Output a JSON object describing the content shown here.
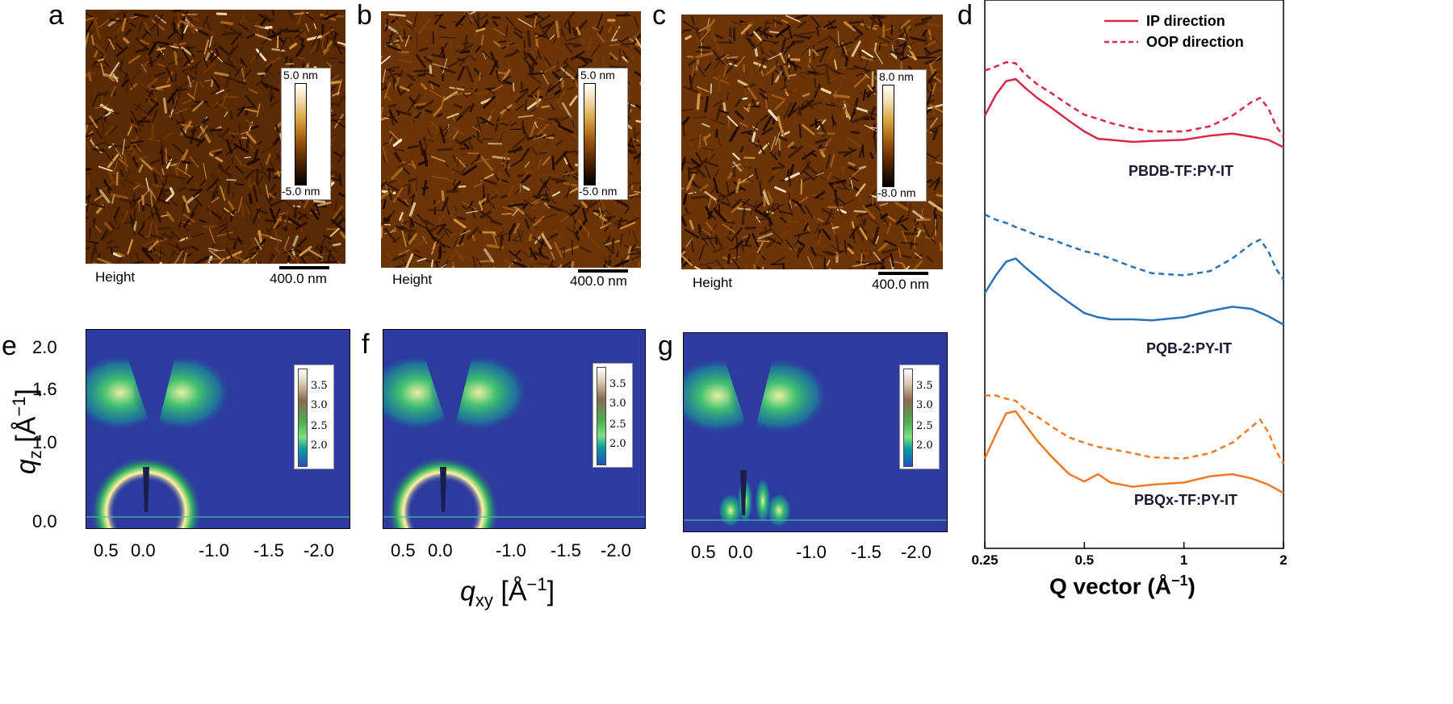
{
  "panels": {
    "a": "a",
    "b": "b",
    "c": "c",
    "d": "d",
    "e": "e",
    "f": "f",
    "g": "g"
  },
  "afm": [
    {
      "id": "a",
      "cbar_top": "5.0 nm",
      "cbar_bottom": "-5.0 nm",
      "channel": "Height",
      "scale": "400.0 nm"
    },
    {
      "id": "b",
      "cbar_top": "5.0 nm",
      "cbar_bottom": "-5.0 nm",
      "channel": "Height",
      "scale": "400.0 nm"
    },
    {
      "id": "c",
      "cbar_top": "8.0 nm",
      "cbar_bottom": "-8.0 nm",
      "channel": "Height",
      "scale": "400.0 nm"
    }
  ],
  "giwaxs": {
    "colorbar_ticks": [
      "3.5",
      "3.0",
      "2.5",
      "2.0"
    ],
    "x_ticks": [
      "0.5",
      "0.0",
      "-1.0",
      "-1.5",
      "-2.0"
    ],
    "y_ticks": [
      "2.0",
      "1.6",
      "1.0",
      "0.0"
    ],
    "xlabel": "q",
    "xlabel_sub": "xy",
    "xlabel_unit": "[Å",
    "xlabel_exp": "−1",
    "xlabel_close": "]",
    "ylabel": "q",
    "ylabel_sub": "z",
    "ylabel_unit": "[Å",
    "ylabel_exp": "−1",
    "ylabel_close": "]"
  },
  "colors": {
    "afm_dark": "#2a1200",
    "afm_mid": "#8a4a0a",
    "afm_light": "#f0d8a0",
    "giwaxs_bg": "#2d3a9e",
    "pbdb": "#d8284a",
    "pqb": "#2a72b8",
    "pbqx": "#f07a24"
  },
  "chart_data": {
    "type": "line",
    "xlabel": "Q vector (Å",
    "xlabel_exp": "−1",
    "xlabel_close": ")",
    "x_scale": "log",
    "xlim": [
      0.25,
      2
    ],
    "x_ticks": [
      "0.25",
      "0.5",
      "1",
      "2"
    ],
    "legend": [
      {
        "label": "IP direction",
        "style": "solid"
      },
      {
        "label": "OOP direction",
        "style": "dashed"
      }
    ],
    "legend_position": "top-right",
    "samples": [
      "PBDB-TF:PY-IT",
      "PQB-2:PY-IT",
      "PBQx-TF:PY-IT"
    ],
    "series": [
      {
        "sample": "PBDB-TF:PY-IT",
        "direction": "IP",
        "color": "#d8284a",
        "x": [
          0.25,
          0.27,
          0.29,
          0.31,
          0.33,
          0.36,
          0.4,
          0.45,
          0.5,
          0.55,
          0.6,
          0.7,
          0.8,
          1.0,
          1.2,
          1.4,
          1.6,
          1.8,
          2.0
        ],
        "y": [
          0.55,
          0.75,
          0.88,
          0.9,
          0.82,
          0.72,
          0.62,
          0.5,
          0.4,
          0.33,
          0.32,
          0.3,
          0.31,
          0.32,
          0.36,
          0.38,
          0.35,
          0.32,
          0.25
        ]
      },
      {
        "sample": "PBDB-TF:PY-IT",
        "direction": "OOP",
        "color": "#d8284a",
        "x": [
          0.25,
          0.27,
          0.29,
          0.31,
          0.33,
          0.36,
          0.4,
          0.45,
          0.5,
          0.55,
          0.6,
          0.7,
          0.8,
          1.0,
          1.2,
          1.4,
          1.6,
          1.7,
          1.8,
          1.9,
          2.0
        ],
        "y": [
          0.98,
          1.02,
          1.06,
          1.05,
          0.95,
          0.85,
          0.76,
          0.65,
          0.56,
          0.52,
          0.48,
          0.43,
          0.4,
          0.4,
          0.45,
          0.55,
          0.68,
          0.72,
          0.62,
          0.45,
          0.35
        ]
      },
      {
        "sample": "PQB-2:PY-IT",
        "direction": "IP",
        "color": "#2a72b8",
        "x": [
          0.25,
          0.27,
          0.29,
          0.31,
          0.33,
          0.36,
          0.4,
          0.45,
          0.5,
          0.55,
          0.6,
          0.7,
          0.8,
          1.0,
          1.2,
          1.4,
          1.6,
          1.8,
          2.0
        ],
        "y": [
          0.55,
          0.72,
          0.85,
          0.88,
          0.8,
          0.7,
          0.58,
          0.46,
          0.36,
          0.32,
          0.3,
          0.3,
          0.29,
          0.32,
          0.38,
          0.42,
          0.4,
          0.33,
          0.25
        ]
      },
      {
        "sample": "PQB-2:PY-IT",
        "direction": "OOP",
        "color": "#2a72b8",
        "x": [
          0.25,
          0.27,
          0.29,
          0.31,
          0.33,
          0.36,
          0.4,
          0.45,
          0.5,
          0.55,
          0.6,
          0.7,
          0.8,
          1.0,
          1.2,
          1.4,
          1.6,
          1.7,
          1.8,
          1.9,
          2.0
        ],
        "y": [
          1.3,
          1.25,
          1.22,
          1.18,
          1.15,
          1.1,
          1.06,
          1.0,
          0.95,
          0.92,
          0.88,
          0.8,
          0.74,
          0.72,
          0.76,
          0.88,
          1.02,
          1.06,
          0.95,
          0.78,
          0.68
        ]
      },
      {
        "sample": "PBQx-TF:PY-IT",
        "direction": "IP",
        "color": "#f07a24",
        "x": [
          0.25,
          0.27,
          0.29,
          0.31,
          0.33,
          0.36,
          0.4,
          0.45,
          0.5,
          0.55,
          0.6,
          0.7,
          0.8,
          1.0,
          1.2,
          1.4,
          1.6,
          1.8,
          2.0
        ],
        "y": [
          0.55,
          0.78,
          0.98,
          1.0,
          0.88,
          0.72,
          0.56,
          0.4,
          0.33,
          0.4,
          0.32,
          0.28,
          0.3,
          0.32,
          0.38,
          0.4,
          0.36,
          0.3,
          0.22
        ]
      },
      {
        "sample": "PBQx-TF:PY-IT",
        "direction": "OOP",
        "color": "#f07a24",
        "x": [
          0.25,
          0.27,
          0.29,
          0.31,
          0.33,
          0.36,
          0.4,
          0.45,
          0.5,
          0.55,
          0.6,
          0.7,
          0.8,
          1.0,
          1.2,
          1.4,
          1.6,
          1.7,
          1.8,
          1.9,
          2.0
        ],
        "y": [
          1.15,
          1.15,
          1.12,
          1.1,
          1.02,
          0.95,
          0.85,
          0.75,
          0.7,
          0.66,
          0.64,
          0.6,
          0.56,
          0.55,
          0.6,
          0.7,
          0.85,
          0.92,
          0.8,
          0.62,
          0.5
        ]
      }
    ]
  }
}
